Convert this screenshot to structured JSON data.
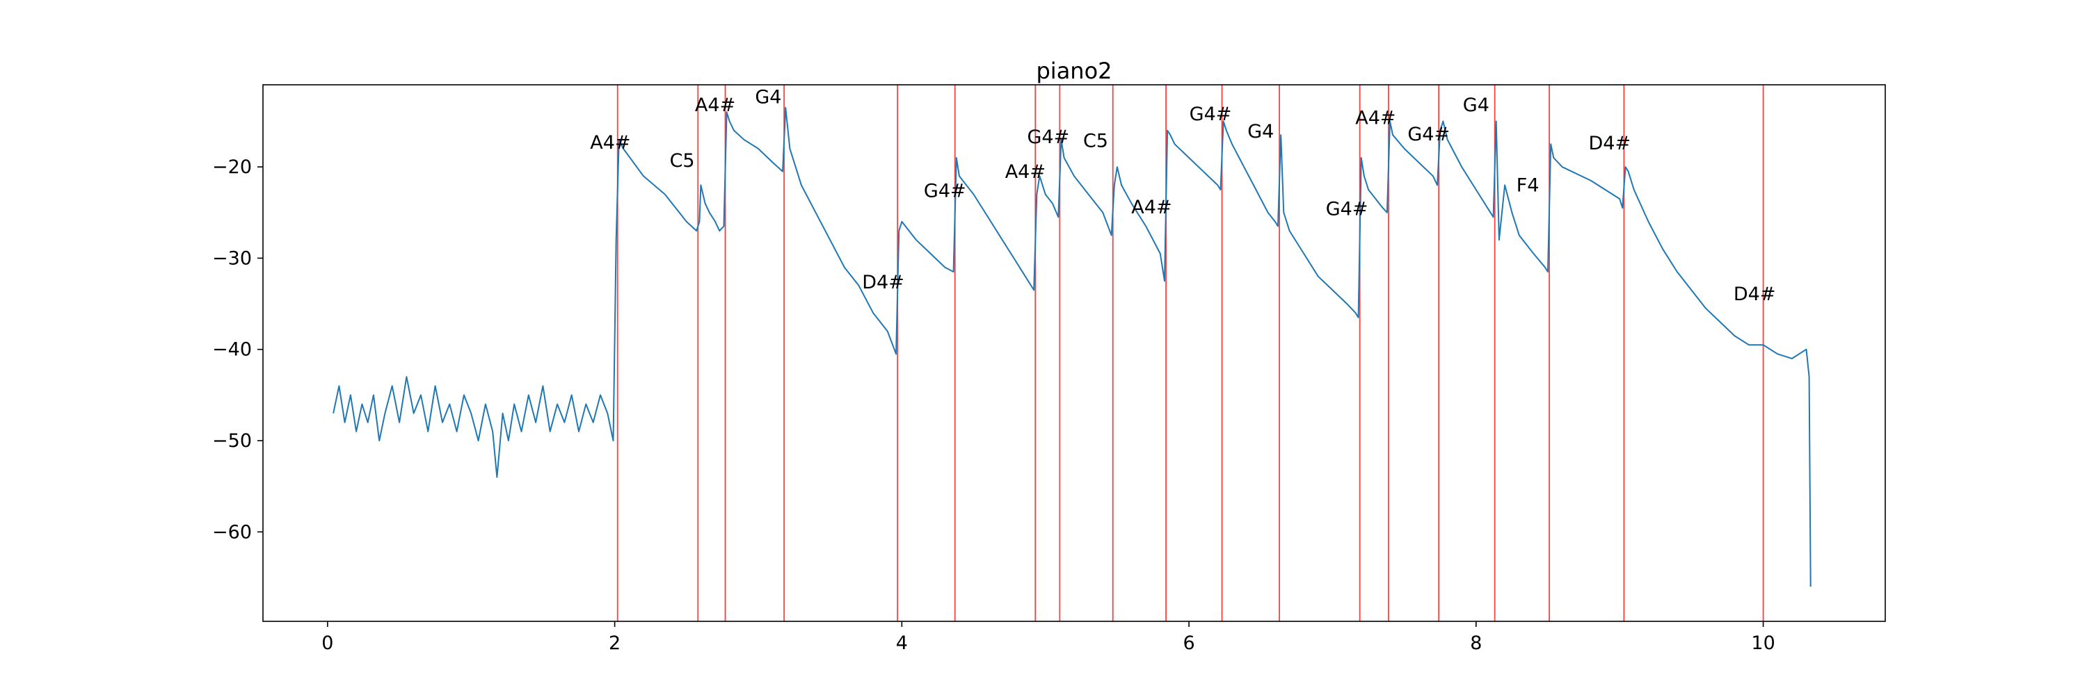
{
  "chart_data": {
    "type": "line",
    "title": "piano2",
    "xlabel": "",
    "ylabel": "",
    "xlim": [
      -0.45,
      10.85
    ],
    "ylim": [
      -69.8,
      -11.0
    ],
    "xticks": [
      0,
      2,
      4,
      6,
      8,
      10
    ],
    "xtick_labels": [
      "0",
      "2",
      "4",
      "6",
      "8",
      "10"
    ],
    "yticks": [
      -20,
      -30,
      -40,
      -50,
      -60
    ],
    "ytick_labels": [
      "−20",
      "−30",
      "−40",
      "−50",
      "−60"
    ],
    "grid": false,
    "legend": false,
    "colors": {
      "line": "#1f77b4",
      "onset": "#ff0000",
      "axes": "#000000"
    },
    "series": [
      {
        "x": [
          0.04,
          0.08,
          0.12,
          0.16,
          0.2,
          0.24,
          0.28,
          0.32,
          0.36,
          0.4,
          0.45,
          0.5,
          0.55,
          0.6,
          0.65,
          0.7,
          0.75,
          0.8,
          0.85,
          0.9,
          0.95,
          1.0,
          1.05,
          1.1,
          1.15,
          1.18,
          1.22,
          1.26,
          1.3,
          1.35,
          1.4,
          1.45,
          1.5,
          1.55,
          1.6,
          1.65,
          1.7,
          1.75,
          1.8,
          1.85,
          1.9,
          1.95,
          1.99,
          2.01,
          2.03,
          2.06,
          2.2,
          2.35,
          2.5,
          2.57,
          2.59,
          2.6,
          2.63,
          2.66,
          2.7,
          2.73,
          2.76,
          2.78,
          2.8,
          2.83,
          2.9,
          3.0,
          3.1,
          3.17,
          3.19,
          3.22,
          3.3,
          3.4,
          3.5,
          3.6,
          3.7,
          3.8,
          3.9,
          3.96,
          3.98,
          4.0,
          4.05,
          4.1,
          4.2,
          4.3,
          4.36,
          4.38,
          4.4,
          4.5,
          4.6,
          4.7,
          4.8,
          4.88,
          4.92,
          4.94,
          4.96,
          5.0,
          5.05,
          5.09,
          5.11,
          5.13,
          5.2,
          5.3,
          5.4,
          5.46,
          5.48,
          5.5,
          5.53,
          5.6,
          5.7,
          5.8,
          5.83,
          5.85,
          5.87,
          5.9,
          6.0,
          6.1,
          6.2,
          6.22,
          6.24,
          6.26,
          6.3,
          6.35,
          6.4,
          6.45,
          6.5,
          6.55,
          6.6,
          6.62,
          6.64,
          6.66,
          6.7,
          6.8,
          6.9,
          7.0,
          7.1,
          7.16,
          7.18,
          7.2,
          7.22,
          7.25,
          7.3,
          7.35,
          7.38,
          7.4,
          7.42,
          7.5,
          7.6,
          7.7,
          7.73,
          7.75,
          7.77,
          7.8,
          7.85,
          7.9,
          8.0,
          8.1,
          8.12,
          8.14,
          8.16,
          8.2,
          8.25,
          8.3,
          8.4,
          8.48,
          8.5,
          8.52,
          8.54,
          8.6,
          8.8,
          9.0,
          9.02,
          9.04,
          9.06,
          9.1,
          9.2,
          9.3,
          9.4,
          9.5,
          9.6,
          9.7,
          9.8,
          9.9,
          10.0,
          10.1,
          10.2,
          10.3,
          10.32,
          10.33
        ],
        "y": [
          -47,
          -44,
          -48,
          -45,
          -49,
          -46,
          -48,
          -45,
          -50,
          -47,
          -44,
          -48,
          -43,
          -47,
          -45,
          -49,
          -44,
          -48,
          -46,
          -49,
          -45,
          -47,
          -50,
          -46,
          -49,
          -54,
          -47,
          -50,
          -46,
          -49,
          -45,
          -48,
          -44,
          -49,
          -46,
          -48,
          -45,
          -49,
          -46,
          -48,
          -45,
          -47,
          -50,
          -28,
          -17,
          -18,
          -21,
          -23,
          -26,
          -27,
          -26,
          -22,
          -24,
          -25,
          -26,
          -27,
          -26.5,
          -14,
          -15,
          -16,
          -17,
          -18,
          -19.5,
          -20.5,
          -13.5,
          -18,
          -22,
          -25,
          -28,
          -31,
          -33,
          -36,
          -38,
          -40.5,
          -27,
          -26,
          -27,
          -28,
          -29.5,
          -31,
          -31.5,
          -19,
          -21,
          -23,
          -25.5,
          -28,
          -30.5,
          -32.5,
          -33.5,
          -23,
          -21,
          -23,
          -24,
          -25.5,
          -17,
          -19,
          -21,
          -23,
          -25,
          -27.5,
          -22,
          -20,
          -22,
          -24,
          -26.5,
          -29.5,
          -32.5,
          -16,
          -16.5,
          -17.5,
          -19,
          -20.5,
          -22,
          -22.5,
          -15,
          -16,
          -17.5,
          -19,
          -20.5,
          -22,
          -23.5,
          -25,
          -26,
          -26.5,
          -16.5,
          -25,
          -27,
          -29.5,
          -32,
          -33.5,
          -35,
          -36,
          -36.5,
          -19,
          -21,
          -22.5,
          -23.5,
          -24.5,
          -25,
          -15,
          -16.5,
          -18,
          -19.5,
          -21,
          -22,
          -16,
          -15,
          -17,
          -18.5,
          -20,
          -22.5,
          -25,
          -25.5,
          -15,
          -28,
          -22,
          -25,
          -27.5,
          -29.5,
          -31,
          -31.5,
          -17.5,
          -19,
          -20,
          -21.5,
          -23.5,
          -24.5,
          -20,
          -20.5,
          -22.5,
          -26,
          -29,
          -31.5,
          -33.5,
          -35.5,
          -37,
          -38.5,
          -39.5,
          -39.5,
          -40.5,
          -41,
          -40,
          -43,
          -66
        ]
      }
    ],
    "onsets": [
      2.02,
      2.58,
      2.77,
      3.18,
      3.97,
      4.37,
      4.93,
      5.1,
      5.47,
      5.84,
      6.23,
      6.63,
      7.19,
      7.39,
      7.74,
      8.13,
      8.51,
      9.03,
      10.0
    ],
    "annotations": [
      {
        "text": "A4#",
        "x": 1.97,
        "y": -18.0
      },
      {
        "text": "C5",
        "x": 2.47,
        "y": -20.0
      },
      {
        "text": "A4#",
        "x": 2.7,
        "y": -13.9
      },
      {
        "text": "G4",
        "x": 3.07,
        "y": -13.0
      },
      {
        "text": "D4#",
        "x": 3.87,
        "y": -33.3
      },
      {
        "text": "G4#",
        "x": 4.3,
        "y": -23.3
      },
      {
        "text": "A4#",
        "x": 4.86,
        "y": -21.2
      },
      {
        "text": "G4#",
        "x": 5.02,
        "y": -17.4
      },
      {
        "text": "C5",
        "x": 5.35,
        "y": -17.8
      },
      {
        "text": "A4#",
        "x": 5.74,
        "y": -25.1
      },
      {
        "text": "G4#",
        "x": 6.15,
        "y": -14.9
      },
      {
        "text": "G4",
        "x": 6.5,
        "y": -16.8
      },
      {
        "text": "G4#",
        "x": 7.1,
        "y": -25.3
      },
      {
        "text": "A4#",
        "x": 7.3,
        "y": -15.3
      },
      {
        "text": "G4#",
        "x": 7.67,
        "y": -17.1
      },
      {
        "text": "G4",
        "x": 8.0,
        "y": -13.9
      },
      {
        "text": "F4",
        "x": 8.36,
        "y": -22.7
      },
      {
        "text": "D4#",
        "x": 8.93,
        "y": -18.1
      },
      {
        "text": "D4#",
        "x": 9.94,
        "y": -34.6
      }
    ]
  }
}
